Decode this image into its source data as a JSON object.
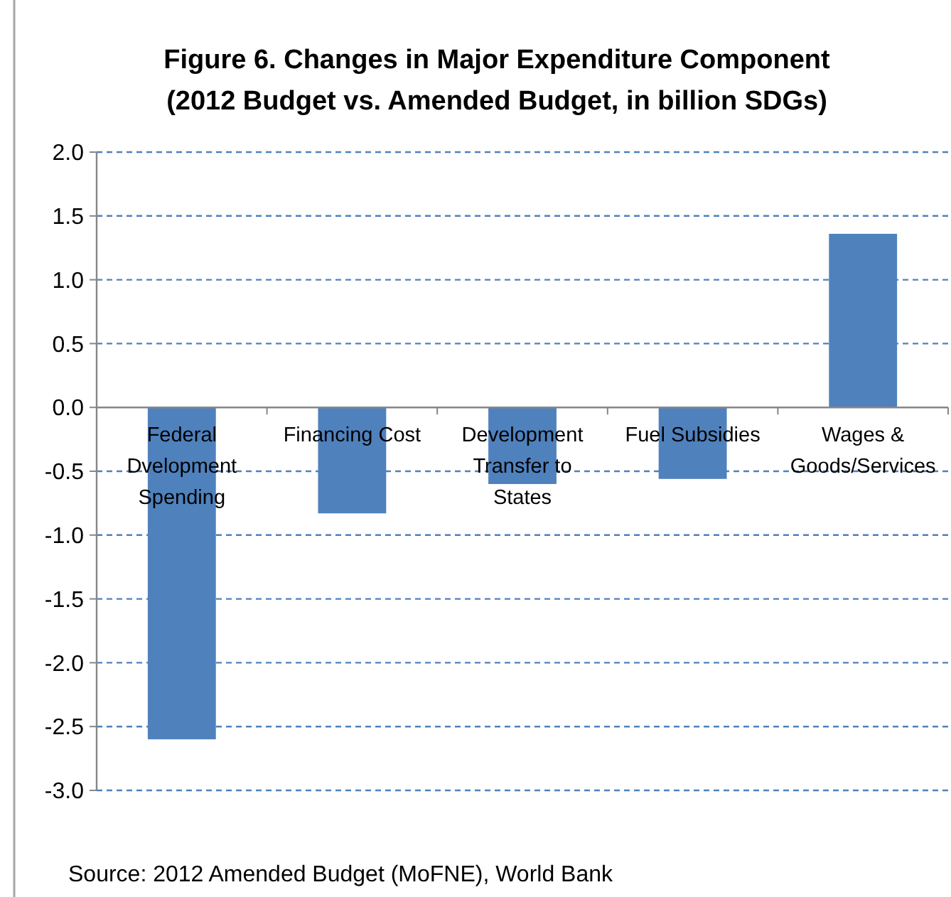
{
  "chart_data": {
    "type": "bar",
    "title": "Figure 6. Changes in Major Expenditure Component\n(2012 Budget vs. Amended Budget, in billion SDGs)",
    "categories": [
      "Federal Dvelopment Spending",
      "Financing Cost",
      "Development Transfer to States",
      "Fuel Subsidies",
      "Wages & Goods/Services"
    ],
    "values": [
      -2.6,
      -0.83,
      -0.6,
      -0.56,
      1.36
    ],
    "color": "#4f81bd",
    "ylim": [
      -3,
      2
    ],
    "yticks": [
      {
        "value": -3,
        "label": "-3.0"
      },
      {
        "value": -2.5,
        "label": "-2.5"
      },
      {
        "value": -2,
        "label": "-2.0"
      },
      {
        "value": -1.5,
        "label": "-1.5"
      },
      {
        "value": -1,
        "label": "-1.0"
      },
      {
        "value": -0.5,
        "label": "-0.5"
      },
      {
        "value": 0,
        "label": "0.0"
      },
      {
        "value": 0.5,
        "label": "0.5"
      },
      {
        "value": 1,
        "label": "1.0"
      },
      {
        "value": 1.5,
        "label": "1.5"
      },
      {
        "value": 2,
        "label": "2.0"
      }
    ],
    "grid": "y",
    "annotations": [
      "Source: 2012 Amended Budget (MoFNE), World Bank"
    ]
  }
}
